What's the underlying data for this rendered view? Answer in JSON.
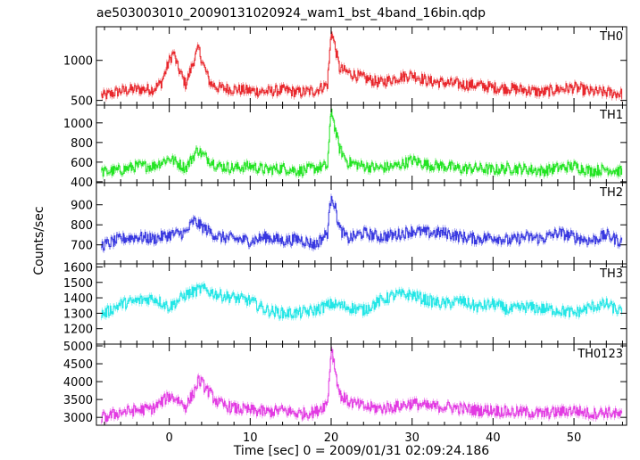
{
  "chart_data": {
    "type": "line",
    "title": "ae503003010_20090131020924_wam1_bst_4band_16bin.qdp",
    "xlabel": "Time [sec] 0 = 2009/01/31 02:09:24.186",
    "ylabel": "Counts/sec",
    "xlim": [
      -9,
      56.5
    ],
    "x_ticks": [
      0,
      10,
      20,
      30,
      40,
      50
    ],
    "grid": false,
    "panels": [
      {
        "name": "TH0",
        "color": "#e8262b",
        "ylim": [
          440,
          1420
        ],
        "y_ticks": [
          500,
          1000
        ],
        "x": [
          -8,
          -6,
          -4,
          -2,
          -1,
          0,
          0.5,
          1,
          2,
          3,
          3.6,
          4,
          5,
          6,
          8,
          10,
          12,
          14,
          16,
          18,
          19.5,
          20,
          20.5,
          21,
          22,
          24,
          26,
          28,
          30,
          32,
          34,
          36,
          38,
          40,
          42,
          44,
          46,
          48,
          50,
          52,
          54,
          56
        ],
        "values": [
          560,
          620,
          640,
          640,
          720,
          1000,
          1100,
          920,
          700,
          1000,
          1150,
          1000,
          720,
          660,
          640,
          620,
          610,
          630,
          600,
          620,
          700,
          1380,
          1150,
          900,
          850,
          780,
          720,
          780,
          820,
          740,
          720,
          700,
          690,
          660,
          650,
          630,
          600,
          640,
          660,
          610,
          600,
          580
        ]
      },
      {
        "name": "TH1",
        "color": "#22e422",
        "ylim": [
          390,
          1180
        ],
        "y_ticks": [
          400,
          600,
          800,
          1000
        ],
        "x": [
          -8,
          -6,
          -4,
          -2,
          0,
          2,
          3.5,
          4,
          6,
          8,
          10,
          12,
          14,
          16,
          18,
          19.5,
          20,
          20.5,
          21,
          22,
          24,
          26,
          28,
          30,
          32,
          34,
          36,
          38,
          40,
          42,
          44,
          46,
          48,
          50,
          52,
          54,
          56
        ],
        "values": [
          500,
          520,
          560,
          560,
          640,
          540,
          730,
          680,
          560,
          540,
          560,
          520,
          540,
          510,
          540,
          560,
          1150,
          920,
          740,
          600,
          560,
          540,
          560,
          620,
          570,
          560,
          530,
          540,
          520,
          540,
          530,
          510,
          540,
          560,
          510,
          530,
          500
        ]
      },
      {
        "name": "TH2",
        "color": "#3838e0",
        "ylim": [
          605,
          1010
        ],
        "y_ticks": [
          700,
          800,
          900
        ],
        "x": [
          -8,
          -6,
          -4,
          -2,
          0,
          2,
          3,
          4,
          6,
          8,
          10,
          12,
          14,
          16,
          18,
          19.5,
          20,
          20.5,
          21,
          22,
          24,
          26,
          28,
          30,
          32,
          34,
          36,
          38,
          40,
          42,
          44,
          46,
          48,
          50,
          52,
          54,
          56
        ],
        "values": [
          700,
          730,
          740,
          730,
          750,
          760,
          820,
          790,
          740,
          730,
          720,
          740,
          720,
          730,
          700,
          760,
          960,
          880,
          780,
          730,
          760,
          740,
          750,
          770,
          760,
          760,
          740,
          730,
          740,
          720,
          740,
          730,
          760,
          740,
          720,
          750,
          710
        ]
      },
      {
        "name": "TH3",
        "color": "#22e6e6",
        "ylim": [
          1100,
          1620
        ],
        "y_ticks": [
          1200,
          1300,
          1400,
          1500,
          1600
        ],
        "x": [
          -8,
          -6,
          -4,
          -2,
          0,
          2,
          4,
          6,
          8,
          10,
          12,
          14,
          16,
          18,
          20,
          22,
          24,
          26,
          28,
          30,
          32,
          34,
          36,
          38,
          40,
          42,
          44,
          46,
          48,
          50,
          52,
          54,
          56
        ],
        "values": [
          1300,
          1360,
          1380,
          1400,
          1340,
          1420,
          1460,
          1420,
          1400,
          1380,
          1320,
          1300,
          1300,
          1320,
          1360,
          1340,
          1320,
          1380,
          1420,
          1420,
          1380,
          1360,
          1380,
          1340,
          1360,
          1320,
          1340,
          1330,
          1320,
          1300,
          1340,
          1360,
          1300
        ]
      },
      {
        "name": "TH0123",
        "color": "#e23ae2",
        "ylim": [
          2780,
          5050
        ],
        "y_ticks": [
          3000,
          3500,
          4000,
          4500,
          5000
        ],
        "x": [
          -8,
          -6,
          -4,
          -2,
          0,
          1,
          2,
          3,
          3.6,
          4,
          6,
          8,
          10,
          12,
          14,
          16,
          18,
          19.5,
          20,
          20.5,
          21,
          22,
          24,
          26,
          28,
          30,
          32,
          34,
          36,
          38,
          40,
          42,
          44,
          46,
          48,
          50,
          52,
          54,
          56
        ],
        "values": [
          3000,
          3150,
          3200,
          3250,
          3600,
          3500,
          3300,
          3700,
          4050,
          3950,
          3400,
          3250,
          3200,
          3150,
          3200,
          3100,
          3150,
          3400,
          4950,
          4300,
          3650,
          3450,
          3300,
          3250,
          3300,
          3400,
          3300,
          3300,
          3250,
          3200,
          3200,
          3150,
          3150,
          3100,
          3150,
          3200,
          3100,
          3150,
          3050
        ]
      }
    ]
  }
}
